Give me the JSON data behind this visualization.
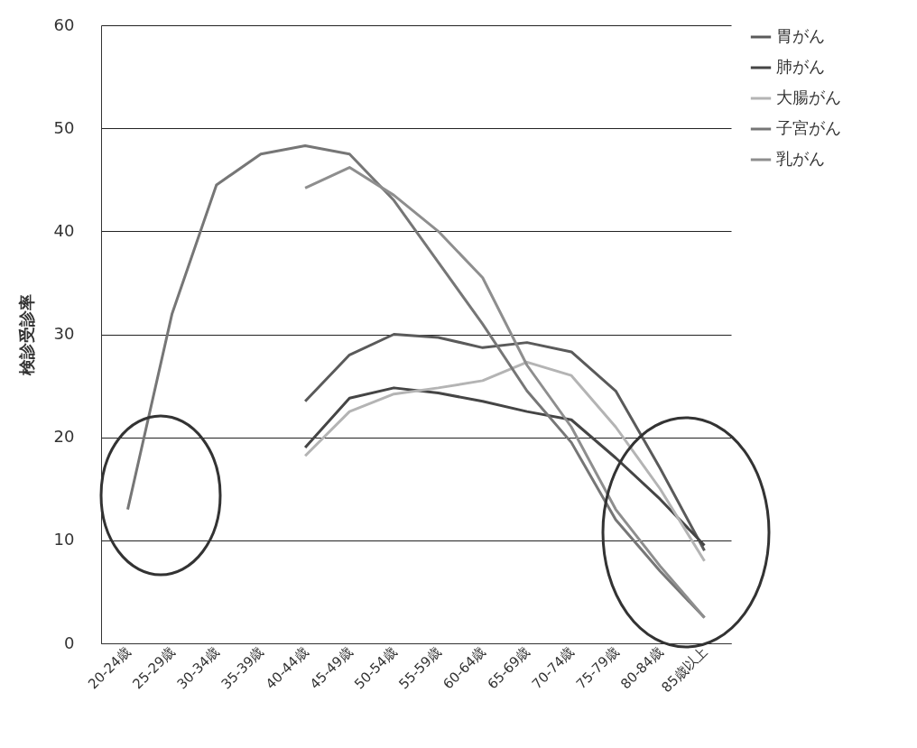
{
  "chart_data": {
    "type": "line",
    "ylabel": "検診受診率",
    "categories": [
      "20-24歳",
      "25-29歳",
      "30-34歳",
      "35-39歳",
      "40-44歳",
      "45-49歳",
      "50-54歳",
      "55-59歳",
      "60-64歳",
      "65-69歳",
      "70-74歳",
      "75-79歳",
      "80-84歳",
      "85歳以上"
    ],
    "series": [
      {
        "name": "胃がん",
        "color": "#5a5a5a",
        "values": [
          null,
          null,
          null,
          null,
          23.5,
          28,
          30,
          29.7,
          28.7,
          29.2,
          28.3,
          24.5,
          17,
          9
        ]
      },
      {
        "name": "肺がん",
        "color": "#454545",
        "values": [
          null,
          null,
          null,
          null,
          19,
          23.8,
          24.8,
          24.3,
          23.5,
          22.5,
          21.7,
          18,
          14,
          9.5
        ]
      },
      {
        "name": "大腸がん",
        "color": "#b4b4b4",
        "values": [
          null,
          null,
          null,
          null,
          18.2,
          22.5,
          24.2,
          24.8,
          25.5,
          27.3,
          26,
          21,
          15,
          8
        ]
      },
      {
        "name": "子宮がん",
        "color": "#767676",
        "values": [
          13,
          32,
          44.5,
          47.5,
          48.3,
          47.5,
          43,
          37,
          31,
          24.5,
          19.5,
          12,
          7,
          2.5
        ]
      },
      {
        "name": "乳がん",
        "color": "#8e8e8e",
        "values": [
          null,
          null,
          null,
          null,
          44.2,
          46.2,
          43.5,
          40,
          35.5,
          27,
          21,
          13,
          7.5,
          2.5
        ]
      }
    ],
    "ylim": [
      0,
      60
    ],
    "yticks": [
      0,
      10,
      20,
      30,
      40,
      50,
      60
    ],
    "grid": "y",
    "legend": "right"
  }
}
